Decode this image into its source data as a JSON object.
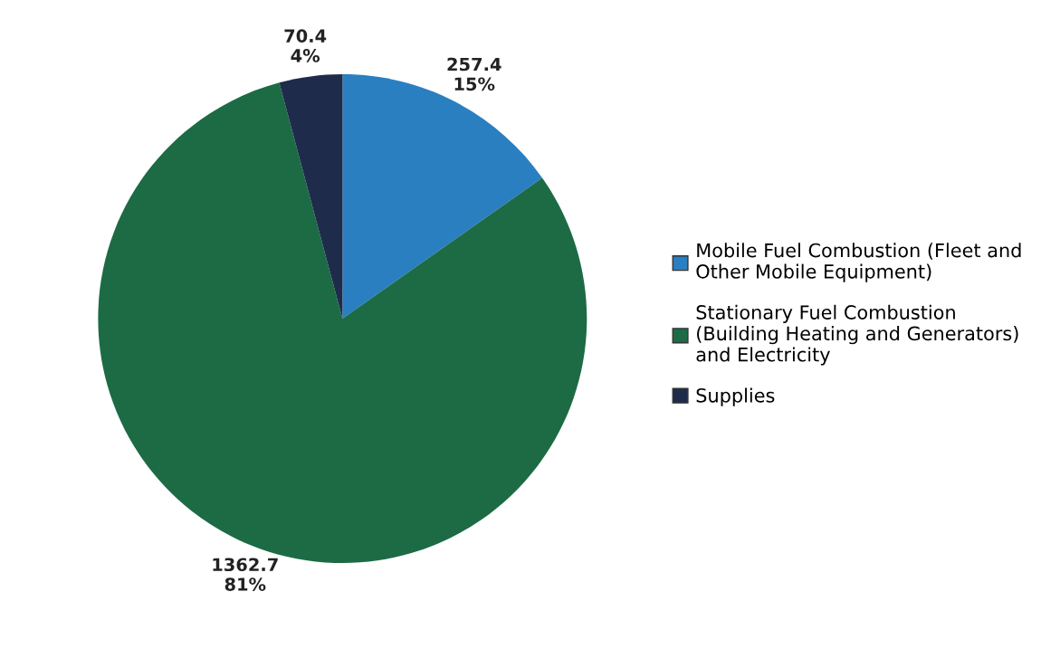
{
  "chart_data": {
    "type": "pie",
    "categories": [
      "Mobile Fuel Combustion (Fleet and Other Mobile Equipment)",
      "Stationary Fuel Combustion (Building Heating and Generators) and Electricity",
      "Supplies"
    ],
    "values": [
      257.4,
      1362.7,
      70.4
    ],
    "value_labels": [
      "257.4\n15%",
      "1362.7\n81%",
      "70.4\n4%"
    ],
    "colors": [
      "#2a7fc0",
      "#1c6b45",
      "#1e2b4a"
    ],
    "legend": "right"
  }
}
